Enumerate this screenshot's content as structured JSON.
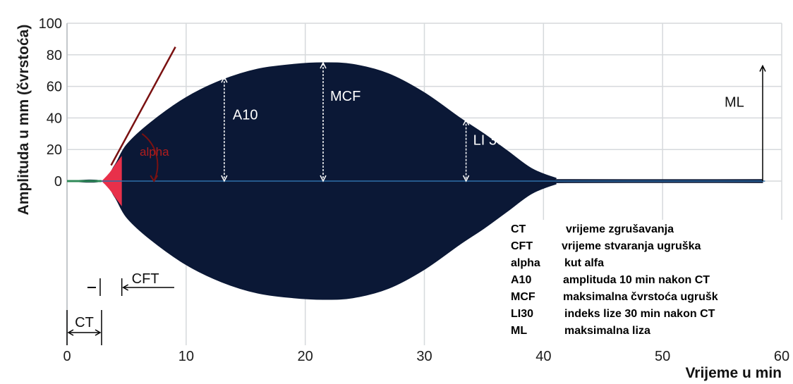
{
  "chart_data": {
    "type": "area",
    "xlabel": "Vrijeme u min",
    "ylabel": "Amplituda u mm (čvrstoća)",
    "xlim": [
      0,
      60
    ],
    "ylim": [
      0,
      100
    ],
    "x_ticks": [
      "0",
      "10",
      "20",
      "30",
      "40",
      "50",
      "60"
    ],
    "y_ticks": [
      "0",
      "20",
      "40",
      "60",
      "80",
      "100"
    ],
    "grid": true,
    "series": [
      {
        "x": [
          0,
          2.9,
          4,
          5,
          7,
          10,
          13,
          16,
          19,
          21.5,
          24,
          27,
          30,
          33,
          35,
          37,
          39,
          41,
          42,
          58.4
        ],
        "values": [
          0,
          0,
          10,
          23,
          37,
          53,
          64,
          71,
          74,
          75,
          74,
          68,
          56,
          40,
          30,
          19,
          8,
          2,
          1,
          1
        ]
      }
    ],
    "measurements": [
      {
        "label": "A10",
        "x": 13.2,
        "value": 66
      },
      {
        "label": "MCF",
        "x": 21.5,
        "value": 75
      },
      {
        "label": "LI 30",
        "x": 33.5,
        "value": 39
      },
      {
        "label": "ML",
        "x": 58.4,
        "value": 73
      }
    ],
    "annotations": {
      "alpha": "alpha",
      "ct": "CT",
      "cft": "CFT",
      "a10": "A10",
      "mcf": "MCF",
      "li30": "LI 30",
      "ml": "ML"
    },
    "legend_placement": "bottom-right",
    "legend": [
      {
        "abbr": "CT",
        "desc": "vrijeme zgrušavanja"
      },
      {
        "abbr": "CFT",
        "desc": "vrijeme stvaranja ugruška"
      },
      {
        "abbr": "alpha",
        "desc": "kut alfa"
      },
      {
        "abbr": "A10",
        "desc": "amplituda 10 min nakon CT"
      },
      {
        "abbr": "MCF",
        "desc": "maksimalna čvrstoća ugrušk"
      },
      {
        "abbr": "LI30",
        "desc": "indeks lize 30 min nakon CT"
      },
      {
        "abbr": "ML",
        "desc": "maksimalna liza"
      }
    ],
    "colors": {
      "fill": "#0b1836",
      "early_clot": "#e8304a",
      "tangent": "#7a1111",
      "axis_zero_line": "#2e6fa8",
      "grid": "#d6d9dc"
    }
  }
}
